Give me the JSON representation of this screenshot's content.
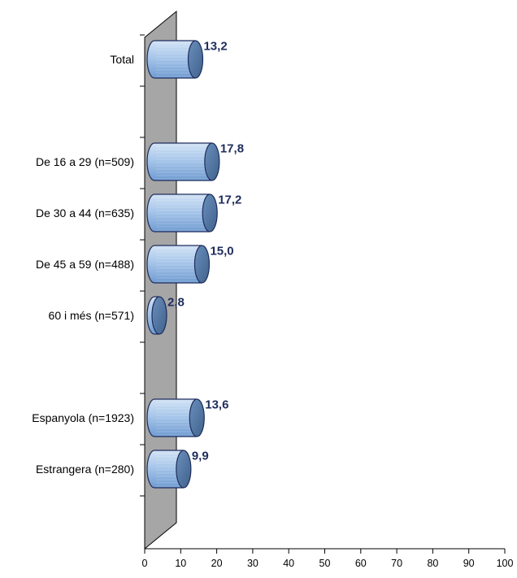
{
  "chart_data": {
    "type": "bar",
    "orientation": "horizontal",
    "style": "3d-cylinder",
    "decimal_separator": ",",
    "xlim": [
      0,
      100
    ],
    "x_ticks": [
      0,
      10,
      20,
      30,
      40,
      50,
      60,
      70,
      80,
      90,
      100
    ],
    "x_tick_labels": [
      "0",
      "10",
      "20",
      "30",
      "40",
      "50",
      "60",
      "70",
      "80",
      "90",
      "100"
    ],
    "title": "",
    "xlabel": "",
    "ylabel": "",
    "grid": false,
    "legend": "none",
    "categories": [
      "Total",
      "De 16 a 29 (n=509)",
      "De 30 a 44 (n=635)",
      "De 45 a 59 (n=488)",
      "60 i més (n=571)",
      "Espanyola (n=1923)",
      "Estrangera (n=280)"
    ],
    "values": [
      13.2,
      17.8,
      17.2,
      15.0,
      2.8,
      13.6,
      9.9
    ],
    "value_labels": [
      "13,2",
      "17,8",
      "17,2",
      "15,0",
      "2,8",
      "13,6",
      "9,9"
    ],
    "groups": [
      [
        "Total"
      ],
      [
        "De 16 a 29 (n=509)",
        "De 30 a 44 (n=635)",
        "De 45 a 59 (n=488)",
        "60 i més (n=571)"
      ],
      [
        "Espanyola (n=1923)",
        "Estrangera (n=280)"
      ]
    ],
    "colors": {
      "bar_fill_light": "#cfe0f3",
      "bar_fill_mid": "#9dbfe6",
      "bar_fill_dark": "#6e9ad0",
      "bar_cap": "#4a6f9a",
      "bar_outline": "#1f2d5c",
      "value_label": "#1f2d5c",
      "wall": "#a6a6a6",
      "axis": "#000000"
    }
  }
}
